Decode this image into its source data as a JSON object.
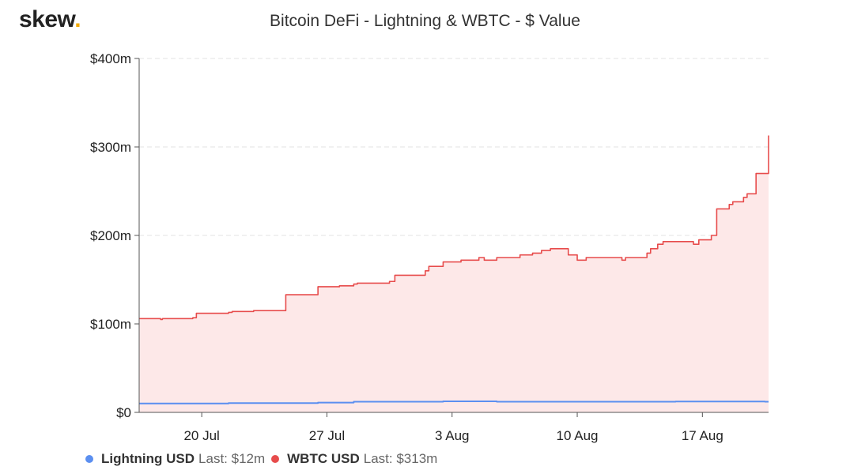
{
  "brand": {
    "name": "skew",
    "dot": ".",
    "dot_color": "#f2a900"
  },
  "chart_data": {
    "type": "area",
    "title": "Bitcoin DeFi - Lightning & WBTC - $ Value",
    "xlabel": "",
    "ylabel": "",
    "ylim": [
      0,
      400
    ],
    "y_ticks": [
      0,
      100,
      200,
      300,
      400
    ],
    "y_tick_labels": [
      "$0",
      "$100m",
      "$200m",
      "$300m",
      "$400m"
    ],
    "x_range": [
      0,
      35.2
    ],
    "x_ticks": [
      3.5,
      10.5,
      17.5,
      24.5,
      31.5
    ],
    "x_tick_labels": [
      "20 Jul",
      "27 Jul",
      "3 Aug",
      "10 Aug",
      "17 Aug"
    ],
    "grid": true,
    "series": [
      {
        "name": "Lightning USD",
        "last_label": "Last: $12m",
        "color": "#5b8ff0",
        "fill": false,
        "x": [
          0,
          5,
          10,
          12,
          17,
          20,
          25,
          30,
          35,
          35.2
        ],
        "values": [
          10,
          10.5,
          11,
          12,
          12.5,
          12,
          12,
          12.3,
          12,
          12
        ]
      },
      {
        "name": "WBTC USD",
        "last_label": "Last: $313m",
        "color": "#e74c4c",
        "fill": true,
        "fill_color": "#fde8e8",
        "x": [
          0,
          1.2,
          1.3,
          3.0,
          3.2,
          5.0,
          5.2,
          6.4,
          6.5,
          7.0,
          7.2,
          8.0,
          8.2,
          9.8,
          10.0,
          11.0,
          11.2,
          12.0,
          12.2,
          14.0,
          14.3,
          16.0,
          16.2,
          17.0,
          17.2,
          18.0,
          18.3,
          19.0,
          19.3,
          20.0,
          21.0,
          21.3,
          22.0,
          22.5,
          23.0,
          24.0,
          24.5,
          25.0,
          26.0,
          27.0,
          27.2,
          28.0,
          28.4,
          28.6,
          29.0,
          29.3,
          30.0,
          31.0,
          31.3,
          32.0,
          32.3,
          33.0,
          33.2,
          33.8,
          34.0,
          34.5,
          35.2
        ],
        "values": [
          106,
          105,
          106,
          107,
          112,
          113,
          114,
          115,
          115,
          115,
          115,
          115,
          133,
          133,
          142,
          142,
          143,
          145,
          146,
          148,
          155,
          160,
          165,
          170,
          170,
          172,
          172,
          175,
          172,
          175,
          175,
          178,
          180,
          183,
          185,
          178,
          172,
          175,
          175,
          172,
          175,
          175,
          180,
          185,
          190,
          193,
          193,
          190,
          195,
          200,
          230,
          235,
          238,
          243,
          247,
          270,
          313
        ]
      }
    ]
  }
}
